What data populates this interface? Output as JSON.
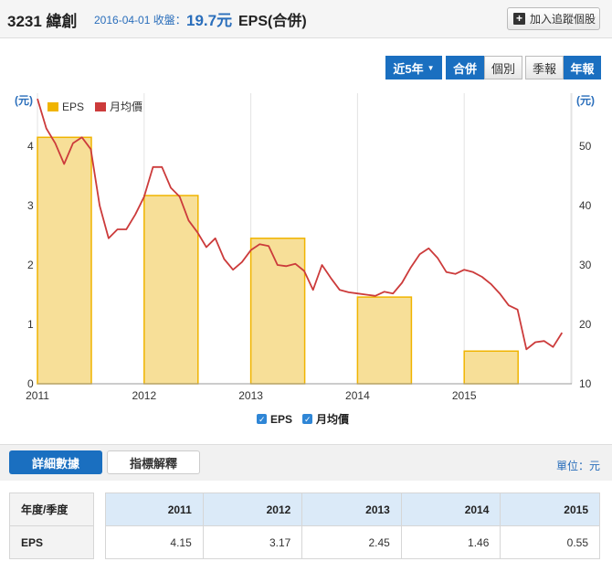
{
  "header": {
    "title": "3231 緯創",
    "date_label": "2016-04-01 收盤：",
    "price": "19.7元",
    "eps_title": "EPS(合併)",
    "track_label": "加入追蹤個股"
  },
  "controls": {
    "period": "近5年",
    "consolidated": "合併",
    "individual": "個別",
    "quarterly": "季報",
    "annual": "年報"
  },
  "chart_data": {
    "type": "bar+line",
    "title": "",
    "left_axis_unit": "(元)",
    "right_axis_unit": "(元)",
    "left_ylim": [
      0,
      4.77
    ],
    "right_ylim": [
      10,
      57.7
    ],
    "left_ticks": [
      "0",
      "1",
      "2",
      "3",
      "4"
    ],
    "right_ticks": [
      "10",
      "20",
      "30",
      "40",
      "50"
    ],
    "x_ticks": [
      "2011",
      "2012",
      "2013",
      "2014",
      "2015"
    ],
    "legend": [
      "EPS",
      "月均價"
    ],
    "bottom_legend": [
      "EPS",
      "月均價"
    ],
    "legend_position": "top-left",
    "grid": "vertical",
    "colors": {
      "bar_fill": "#f7df98",
      "bar_stroke": "#f0b400",
      "line": "#cc3b3b"
    },
    "eps": {
      "years": [
        "2011",
        "2012",
        "2013",
        "2014",
        "2015"
      ],
      "values": [
        4.15,
        3.17,
        2.45,
        1.46,
        0.55
      ]
    },
    "monthly_price": [
      58,
      53,
      50.5,
      47,
      50.5,
      51.5,
      49.5,
      40,
      34.5,
      36,
      36,
      38.5,
      41.5,
      46.5,
      46.5,
      43,
      41.5,
      37.5,
      35.5,
      33,
      34.5,
      31,
      29.2,
      30.5,
      32.5,
      33.5,
      33.2,
      30,
      29.8,
      30.2,
      29,
      25.8,
      30,
      27.8,
      25.8,
      25.4,
      25.2,
      25,
      24.8,
      25.5,
      25.2,
      27,
      29.6,
      31.8,
      32.8,
      31.2,
      28.8,
      28.5,
      29.2,
      28.8,
      28,
      26.8,
      25.2,
      23.2,
      22.5,
      15.8,
      17,
      17.2,
      16.2,
      18.6
    ]
  },
  "tabs": {
    "detail": "詳細數據",
    "indicator": "指標解釋",
    "unit": "單位：元"
  },
  "table": {
    "header": [
      "年度/季度",
      "2011",
      "2012",
      "2013",
      "2014",
      "2015"
    ],
    "row_label": "EPS",
    "values": [
      "4.15",
      "3.17",
      "2.45",
      "1.46",
      "0.55"
    ]
  }
}
